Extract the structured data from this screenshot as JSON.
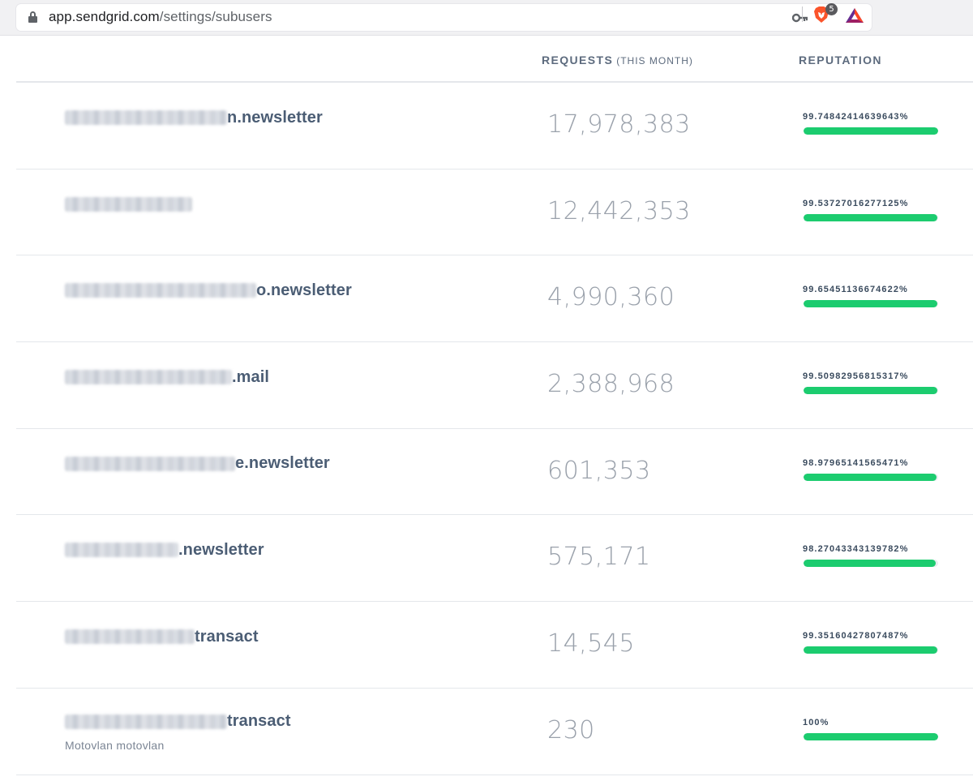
{
  "browser": {
    "url_domain": "app.sendgrid.com",
    "url_path": "/settings/subusers",
    "brave_badge_count": "5",
    "icons": [
      "lock-icon",
      "key-icon",
      "brave-lion-icon",
      "bat-triangle-icon"
    ]
  },
  "table": {
    "headers": {
      "requests": "REQUESTS",
      "requests_sub": "(THIS MONTH)",
      "reputation": "REPUTATION"
    },
    "rows": [
      {
        "name_suffix": "n.newsletter",
        "sub_label": "",
        "requests": "17,978,383",
        "reputation": "99.74842414639643%",
        "reputation_pct": 99.74842414639643
      },
      {
        "name_suffix": "",
        "sub_label": "",
        "requests": "12,442,353",
        "reputation": "99.53727016277125%",
        "reputation_pct": 99.53727016277125
      },
      {
        "name_suffix": "o.newsletter",
        "sub_label": "",
        "requests": "4,990,360",
        "reputation": "99.65451136674622%",
        "reputation_pct": 99.65451136674622
      },
      {
        "name_suffix": ".mail",
        "sub_label": "",
        "requests": "2,388,968",
        "reputation": "99.50982956815317%",
        "reputation_pct": 99.50982956815317
      },
      {
        "name_suffix": "e.newsletter",
        "sub_label": "",
        "requests": "601,353",
        "reputation": "98.97965141565471%",
        "reputation_pct": 98.97965141565471
      },
      {
        "name_suffix": ".newsletter",
        "sub_label": "",
        "requests": "575,171",
        "reputation": "98.27043343139782%",
        "reputation_pct": 98.27043343139782
      },
      {
        "name_suffix": "transact",
        "sub_label": "",
        "requests": "14,545",
        "reputation": "99.35160427807487%",
        "reputation_pct": 99.35160427807487
      },
      {
        "name_suffix": "transact",
        "sub_label": "Motovlan motovlan",
        "requests": "230",
        "reputation": "100%",
        "reputation_pct": 100
      }
    ]
  },
  "colors": {
    "reputation_bar": "#1ccc6f",
    "text_primary": "#4b5d74",
    "text_muted": "#9aa1ab"
  }
}
